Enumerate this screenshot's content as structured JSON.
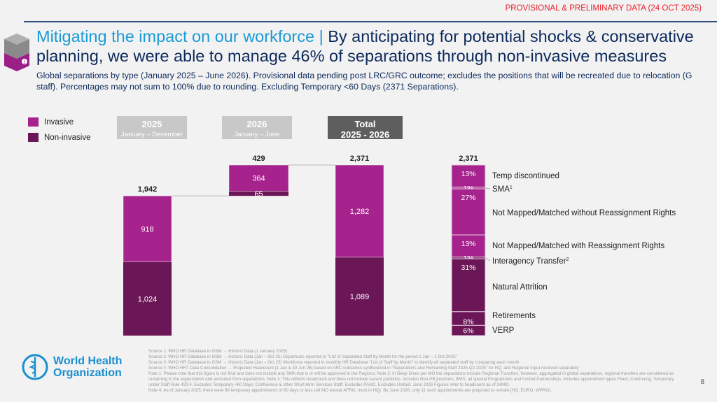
{
  "banner": "PROVISIONAL & PRELIMINARY DATA (24 OCT 2025)",
  "title": {
    "highlight": "Mitigating the impact on our workforce |",
    "rest": " By anticipating for potential shocks & conservative planning, we were able to manage 46% of separations through non-invasive measures"
  },
  "subtitle": "Global separations by type (January 2025 – June 2026). Provisional data pending post LRC/GRC outcome; excludes the positions that will be recreated due to relocation (G staff). Percentages may not sum to 100% due to rounding. Excluding Temporary <60 Days (2371 Separations).",
  "icon_badge": "2",
  "colors": {
    "invasive": "#a6228c",
    "non_invasive": "#6b1657",
    "header_light": "#c8c8c8",
    "header_dark": "#5e5e5e"
  },
  "chart_data": [
    {
      "type": "bar",
      "subtype": "waterfall-stacked",
      "categories": [
        {
          "label": "2025",
          "sub": "January – December"
        },
        {
          "label": "2026",
          "sub": "January – June"
        },
        {
          "label": "Total",
          "sub": "2025 - 2026"
        }
      ],
      "series": [
        {
          "name": "Invasive",
          "values": [
            918,
            364,
            1282
          ]
        },
        {
          "name": "Non-invasive",
          "values": [
            1024,
            65,
            1089
          ]
        }
      ],
      "totals": [
        "1,942",
        "429",
        "2,371"
      ],
      "legend": "top-left"
    },
    {
      "type": "bar",
      "subtype": "100%-stacked",
      "total": "2,371",
      "segments": [
        {
          "label": "Temp discontinued",
          "sup": "",
          "value": 13,
          "group": "invasive"
        },
        {
          "label": "SMA",
          "sup": "1",
          "value": 1,
          "group": "invasive"
        },
        {
          "label": "Not Mapped/Matched without Reassignment Rights",
          "sup": "",
          "value": 27,
          "group": "invasive"
        },
        {
          "label": "Not Mapped/Matched with Reassignment Rights",
          "sup": "",
          "value": 13,
          "group": "invasive"
        },
        {
          "label": "Interagency Transfer",
          "sup": "2",
          "value": 1,
          "group": "non_invasive"
        },
        {
          "label": "Natural Attrition",
          "sup": "",
          "value": 31,
          "group": "non_invasive"
        },
        {
          "label": "Retirements",
          "sup": "",
          "value": 8,
          "group": "non_invasive"
        },
        {
          "label": "VERP",
          "sup": "",
          "value": 6,
          "group": "non_invasive"
        }
      ]
    }
  ],
  "logo": {
    "line1": "World Health",
    "line2": "Organization"
  },
  "footnotes": [
    "Source 1: WHO HR Database in GSM → Historic Data (1 January 2025)",
    "Source 2: WHO HR Database in GSM → Historic Data (Jan – Oct 25) Departures reported in \"List of Separated Staff by Month for the period 1 Jan – 1 Oct 2025\"",
    "Source 3: WHO HR Database in GSM → Historic Data (Jan – Oct 25) Workforce reported in monthly HR Database \"List of Staff by Month\" to identify all separated staff by comparing each month",
    "Source 4: WHO HRT Data Consolidation → Projected Headcount (1 Jan & 30 Jun 26) based on ARC outcomes synthesized in \"Separations and Remaining Staff 2025-Q2 2026\" for HQ; and Regional Input received separately",
    "Note 1: Please note that this figure is not final and does not include any SMA that is or will be approved in the Regions; Note 2: In Deep Dives per MO the separations include Regional Transfers, however, aggregated in global separations, regional transfers are considered as remaining in the organization and excluded from separations. Note 3: This reflects headcount and does not include vacant positions. Includes Non-PB positions, BMS, all special Programmes and hosted Partnerships. Includes appointment types Fixed, Continuing, Temporary under Staff Rule 420.4. Excludes Temporary <60 Days; Conference & other Short-term Services Staff. Excludes PAHO. Excludes Unitaid. June 2026 Figures refer to headcount as of 24h00.",
    "Note 4: As of January 2025, there were 99 temporary appointments of 60 days or less (All MO except AFRO, most in HQ). By June 2026, only 11 such appointments are projected to remain (HQ, EURO, WPRO)."
  ],
  "page_number": "8"
}
